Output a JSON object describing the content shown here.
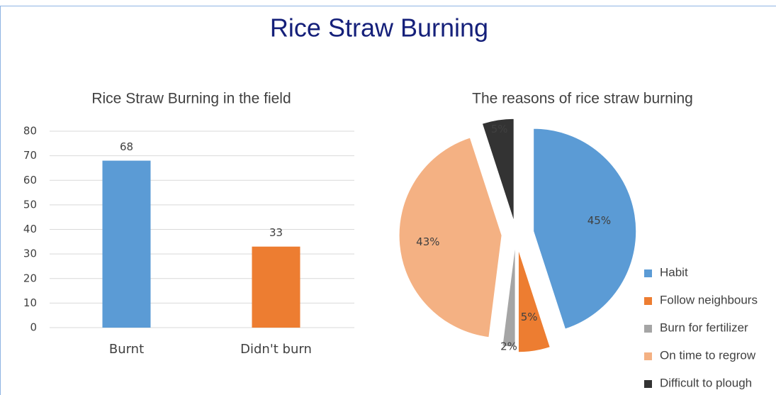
{
  "title": "Rice Straw Burning",
  "chart_data": [
    {
      "type": "bar",
      "title": "Rice Straw Burning in the field",
      "categories": [
        "Burnt",
        "Didn't burn"
      ],
      "values": [
        68,
        33
      ],
      "colors": [
        "#5b9bd5",
        "#ed7d31"
      ],
      "ylim": [
        0,
        80
      ],
      "yticks": [
        0,
        10,
        20,
        30,
        40,
        50,
        60,
        70,
        80
      ],
      "grid": true
    },
    {
      "type": "pie",
      "title": "The reasons of rice straw burning",
      "categories": [
        "Habit",
        "Follow neighbours",
        "Burn for fertilizer",
        "On time to regrow",
        "Difficult to plough"
      ],
      "values": [
        45,
        5,
        2,
        43,
        5
      ],
      "value_labels": [
        "45%",
        "5%",
        "2%",
        "43%",
        "5%"
      ],
      "colors": [
        "#5b9bd5",
        "#ed7d31",
        "#a5a5a5",
        "#f4b183",
        "#333333"
      ],
      "legend": "right"
    }
  ]
}
